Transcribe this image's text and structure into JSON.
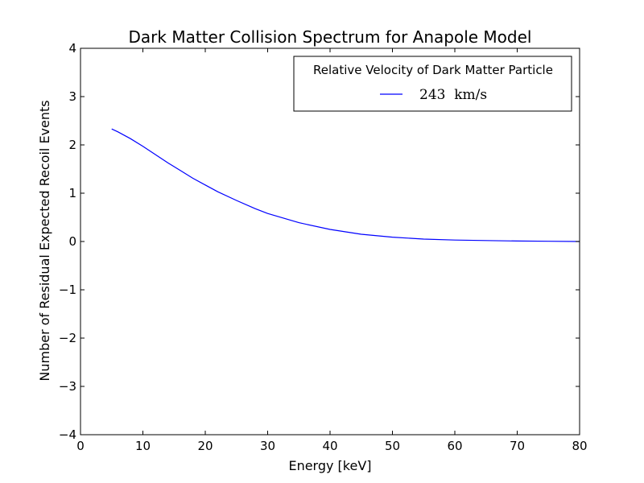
{
  "chart_data": {
    "type": "line",
    "title": "Dark Matter Collision Spectrum for Anapole Model",
    "xlabel": "Energy [keV]",
    "ylabel": "Number of Residual Expected Recoil Events",
    "xlim": [
      0,
      80
    ],
    "ylim": [
      -4,
      4
    ],
    "x_ticks": [
      0,
      10,
      20,
      30,
      40,
      50,
      60,
      70,
      80
    ],
    "y_ticks": [
      -4,
      -3,
      -2,
      -1,
      0,
      1,
      2,
      3,
      4
    ],
    "x_tick_labels": [
      "0",
      "10",
      "20",
      "30",
      "40",
      "50",
      "60",
      "70",
      "80"
    ],
    "y_tick_labels": [
      "−4",
      "−3",
      "−2",
      "−1",
      "0",
      "1",
      "2",
      "3",
      "4"
    ],
    "grid": false,
    "legend": {
      "title": "Relative Velocity of Dark Matter Particle",
      "placement": "top-right"
    },
    "series": [
      {
        "name": "243  km/s",
        "color": "#0000ff",
        "x": [
          5,
          6,
          8,
          10,
          12,
          14,
          16,
          18,
          20,
          22,
          25,
          28,
          30,
          35,
          40,
          45,
          50,
          55,
          60,
          65,
          70,
          75,
          80
        ],
        "y": [
          2.33,
          2.27,
          2.13,
          1.97,
          1.8,
          1.63,
          1.47,
          1.31,
          1.17,
          1.03,
          0.85,
          0.68,
          0.58,
          0.39,
          0.25,
          0.15,
          0.09,
          0.05,
          0.03,
          0.02,
          0.01,
          0.005,
          0.0
        ]
      }
    ]
  }
}
